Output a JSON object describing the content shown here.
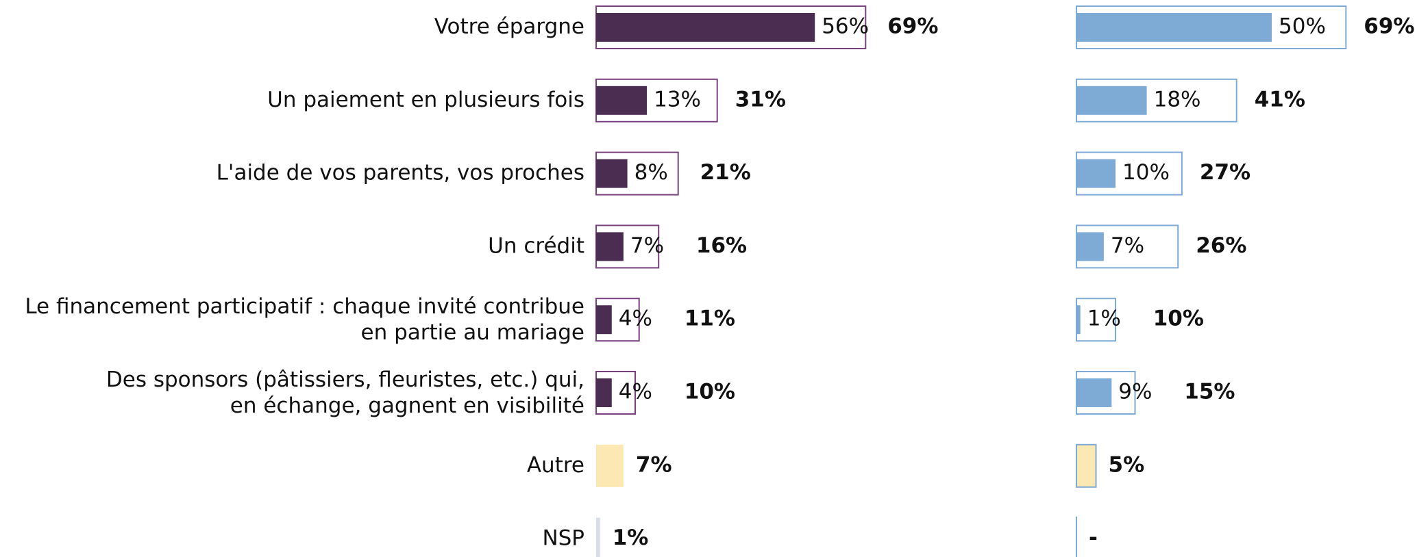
{
  "chart_data": {
    "type": "bar",
    "categories": [
      "Votre épargne",
      "Un paiement en plusieurs fois",
      "L'aide de vos parents, vos proches",
      "Un crédit",
      "Le financement participatif : chaque invité contribue\nen partie au mariage",
      "Des sponsors (pâtissiers, fleuristes, etc.) qui,\nen échange, gagnent en visibilité",
      "Autre",
      "NSP"
    ],
    "panels": [
      {
        "series": [
          {
            "color": "#4b2d52",
            "values": [
              56,
              13,
              8,
              7,
              4,
              4,
              null,
              null
            ],
            "value_labels": [
              "56%",
              "13%",
              "8%",
              "7%",
              "4%",
              "4%",
              null,
              null
            ]
          },
          {
            "colors": [
              "#7a3f7f",
              "#7a3f7f",
              "#7a3f7f",
              "#7a3f7f",
              "#7a3f7f",
              "#7a3f7f",
              "#fce8b2",
              "#d8dde8"
            ],
            "values": [
              69,
              31,
              21,
              16,
              11,
              10,
              7,
              1
            ],
            "value_labels": [
              "69%",
              "31%",
              "21%",
              "16%",
              "11%",
              "10%",
              "7%",
              "1%"
            ]
          }
        ]
      },
      {
        "series": [
          {
            "color": "#7eaad6",
            "values": [
              50,
              18,
              10,
              7,
              1,
              9,
              null,
              null
            ],
            "value_labels": [
              "50%",
              "18%",
              "10%",
              "7%",
              "1%",
              "9%",
              null,
              null
            ]
          },
          {
            "colors": [
              "#7eaad6",
              "#7eaad6",
              "#7eaad6",
              "#7eaad6",
              "#7eaad6",
              "#7eaad6",
              "#fce8b2",
              "#7eaad6"
            ],
            "values": [
              69,
              41,
              27,
              26,
              10,
              15,
              5,
              null
            ],
            "value_labels": [
              "69%",
              "41%",
              "27%",
              "26%",
              "10%",
              "15%",
              "5%",
              "-"
            ]
          }
        ]
      }
    ]
  }
}
